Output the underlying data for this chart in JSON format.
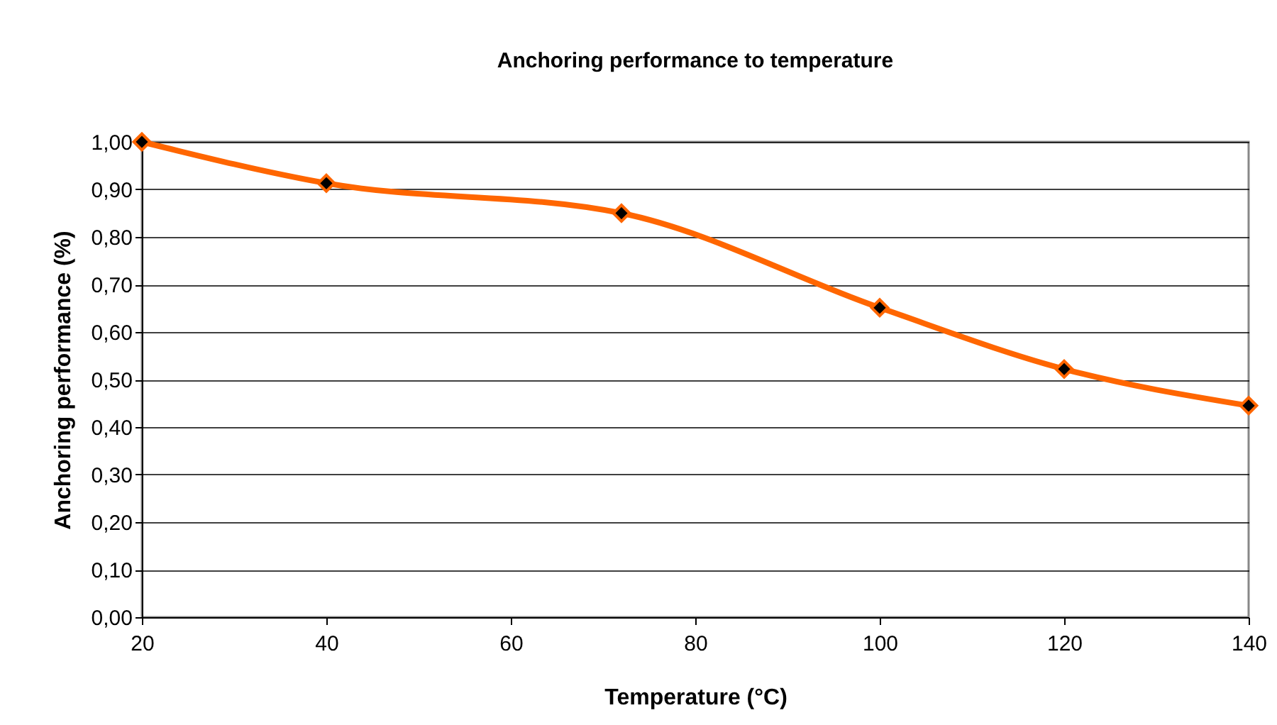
{
  "chart_data": {
    "type": "line",
    "title": "Anchoring performance to temperature",
    "xlabel": "Temperature (°C)",
    "ylabel": "Anchoring performance (%)",
    "x": [
      20,
      40,
      72,
      100,
      120,
      140
    ],
    "series": [
      {
        "color": "#ff6600",
        "values": [
          1.0,
          0.913,
          0.85,
          0.651,
          0.522,
          0.445
        ]
      }
    ],
    "xlim": [
      20,
      140
    ],
    "xticks": [
      20,
      40,
      60,
      80,
      100,
      120,
      140
    ],
    "ylim": [
      0,
      1
    ],
    "yticks": [
      {
        "value": 0,
        "label": "0,00"
      },
      {
        "value": 0.1,
        "label": "0,10"
      },
      {
        "value": 0.2,
        "label": "0,20"
      },
      {
        "value": 0.3,
        "label": "0,30"
      },
      {
        "value": 0.4,
        "label": "0,40"
      },
      {
        "value": 0.5,
        "label": "0,50"
      },
      {
        "value": 0.6,
        "label": "0,60"
      },
      {
        "value": 0.7,
        "label": "0,70"
      },
      {
        "value": 0.8,
        "label": "0,80"
      },
      {
        "value": 0.9,
        "label": "0,90"
      },
      {
        "value": 1,
        "label": "1,00"
      }
    ],
    "grid": "y",
    "marker": "diamond",
    "line_style": "solid"
  }
}
